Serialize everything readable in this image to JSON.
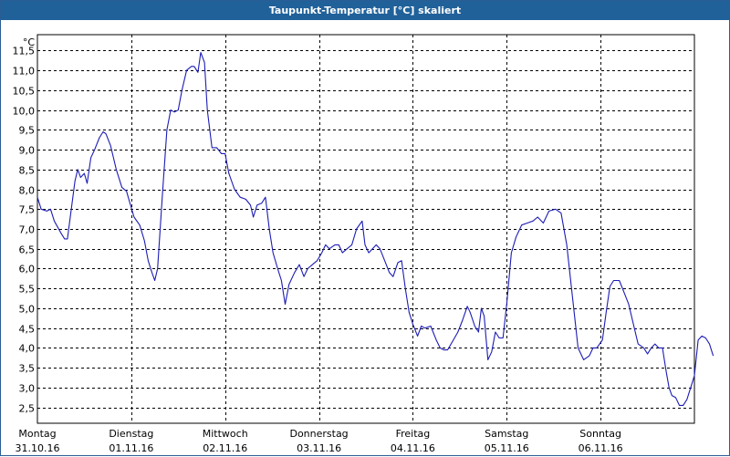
{
  "window": {
    "title": "Taupunkt-Temperatur [°C] skaliert"
  },
  "colors": {
    "title_bar": "#20619a",
    "series": "#1c1cb4",
    "grid": "#000000"
  },
  "chart_data": {
    "type": "line",
    "title": "Taupunkt-Temperatur [°C] skaliert",
    "ylabel": "°C",
    "xlabel": "",
    "ylim": [
      2.1,
      11.9
    ],
    "grid": true,
    "y_ticks": [
      "2,5",
      "3,0",
      "3,5",
      "4,0",
      "4,5",
      "5,0",
      "5,5",
      "6,0",
      "6,5",
      "7,0",
      "7,5",
      "8,0",
      "8,5",
      "9,0",
      "9,5",
      "10,0",
      "10,5",
      "11,0",
      "11,5"
    ],
    "y_tick_values": [
      2.5,
      3.0,
      3.5,
      4.0,
      4.5,
      5.0,
      5.5,
      6.0,
      6.5,
      7.0,
      7.5,
      8.0,
      8.5,
      9.0,
      9.5,
      10.0,
      10.5,
      11.0,
      11.5
    ],
    "days": [
      {
        "weekday": "Montag",
        "date": "31.10.16"
      },
      {
        "weekday": "Dienstag",
        "date": "01.11.16"
      },
      {
        "weekday": "Mittwoch",
        "date": "02.11.16"
      },
      {
        "weekday": "Donnerstag",
        "date": "03.11.16"
      },
      {
        "weekday": "Freitag",
        "date": "04.11.16"
      },
      {
        "weekday": "Samstag",
        "date": "05.11.16"
      },
      {
        "weekday": "Sonntag",
        "date": "06.11.16"
      }
    ],
    "xlim": [
      0,
      7
    ],
    "series": [
      {
        "points": [
          [
            0.0,
            7.8
          ],
          [
            0.04,
            7.5
          ],
          [
            0.1,
            7.45
          ],
          [
            0.14,
            7.5
          ],
          [
            0.18,
            7.2
          ],
          [
            0.25,
            6.9
          ],
          [
            0.29,
            6.75
          ],
          [
            0.32,
            6.75
          ],
          [
            0.35,
            7.3
          ],
          [
            0.4,
            8.2
          ],
          [
            0.43,
            8.5
          ],
          [
            0.46,
            8.3
          ],
          [
            0.5,
            8.4
          ],
          [
            0.53,
            8.15
          ],
          [
            0.57,
            8.8
          ],
          [
            0.61,
            9.0
          ],
          [
            0.66,
            9.3
          ],
          [
            0.7,
            9.45
          ],
          [
            0.73,
            9.4
          ],
          [
            0.78,
            9.1
          ],
          [
            0.84,
            8.5
          ],
          [
            0.9,
            8.05
          ],
          [
            0.95,
            7.95
          ],
          [
            0.98,
            7.7
          ],
          [
            1.03,
            7.3
          ],
          [
            1.09,
            7.1
          ],
          [
            1.14,
            6.7
          ],
          [
            1.18,
            6.2
          ],
          [
            1.22,
            5.9
          ],
          [
            1.25,
            5.7
          ],
          [
            1.28,
            6.0
          ],
          [
            1.33,
            7.8
          ],
          [
            1.38,
            9.5
          ],
          [
            1.42,
            10.0
          ],
          [
            1.46,
            9.95
          ],
          [
            1.5,
            10.0
          ],
          [
            1.54,
            10.5
          ],
          [
            1.59,
            11.0
          ],
          [
            1.64,
            11.1
          ],
          [
            1.67,
            11.1
          ],
          [
            1.71,
            10.95
          ],
          [
            1.74,
            11.45
          ],
          [
            1.78,
            11.2
          ],
          [
            1.81,
            10.0
          ],
          [
            1.86,
            9.05
          ],
          [
            1.91,
            9.05
          ],
          [
            1.96,
            8.9
          ],
          [
            2.0,
            8.9
          ],
          [
            2.04,
            8.4
          ],
          [
            2.1,
            8.0
          ],
          [
            2.16,
            7.8
          ],
          [
            2.22,
            7.75
          ],
          [
            2.27,
            7.6
          ],
          [
            2.3,
            7.3
          ],
          [
            2.34,
            7.6
          ],
          [
            2.39,
            7.65
          ],
          [
            2.43,
            7.8
          ],
          [
            2.47,
            7.0
          ],
          [
            2.51,
            6.4
          ],
          [
            2.56,
            6.0
          ],
          [
            2.6,
            5.7
          ],
          [
            2.64,
            5.1
          ],
          [
            2.68,
            5.6
          ],
          [
            2.74,
            5.9
          ],
          [
            2.79,
            6.1
          ],
          [
            2.84,
            5.8
          ],
          [
            2.88,
            6.0
          ],
          [
            2.93,
            6.1
          ],
          [
            2.98,
            6.2
          ],
          [
            3.03,
            6.4
          ],
          [
            3.07,
            6.6
          ],
          [
            3.11,
            6.5
          ],
          [
            3.17,
            6.6
          ],
          [
            3.21,
            6.6
          ],
          [
            3.25,
            6.4
          ],
          [
            3.3,
            6.5
          ],
          [
            3.35,
            6.6
          ],
          [
            3.4,
            7.0
          ],
          [
            3.46,
            7.2
          ],
          [
            3.49,
            6.6
          ],
          [
            3.53,
            6.4
          ],
          [
            3.57,
            6.5
          ],
          [
            3.61,
            6.6
          ],
          [
            3.65,
            6.5
          ],
          [
            3.7,
            6.2
          ],
          [
            3.75,
            5.9
          ],
          [
            3.79,
            5.8
          ],
          [
            3.84,
            6.15
          ],
          [
            3.88,
            6.2
          ],
          [
            3.92,
            5.5
          ],
          [
            3.96,
            4.9
          ],
          [
            4.0,
            4.6
          ],
          [
            4.05,
            4.3
          ],
          [
            4.09,
            4.55
          ],
          [
            4.13,
            4.5
          ],
          [
            4.19,
            4.55
          ],
          [
            4.25,
            4.2
          ],
          [
            4.29,
            4.0
          ],
          [
            4.33,
            3.95
          ],
          [
            4.37,
            3.95
          ],
          [
            4.42,
            4.15
          ],
          [
            4.48,
            4.4
          ],
          [
            4.53,
            4.7
          ],
          [
            4.58,
            5.05
          ],
          [
            4.61,
            4.9
          ],
          [
            4.66,
            4.55
          ],
          [
            4.7,
            4.4
          ],
          [
            4.73,
            5.0
          ],
          [
            4.76,
            4.8
          ],
          [
            4.8,
            3.7
          ],
          [
            4.84,
            3.9
          ],
          [
            4.88,
            4.4
          ],
          [
            4.92,
            4.25
          ],
          [
            4.96,
            4.25
          ],
          [
            5.0,
            5.1
          ],
          [
            5.05,
            6.4
          ],
          [
            5.1,
            6.8
          ],
          [
            5.16,
            7.1
          ],
          [
            5.22,
            7.15
          ],
          [
            5.28,
            7.2
          ],
          [
            5.33,
            7.3
          ],
          [
            5.39,
            7.15
          ],
          [
            5.45,
            7.45
          ],
          [
            5.52,
            7.5
          ],
          [
            5.58,
            7.4
          ],
          [
            5.64,
            6.6
          ],
          [
            5.7,
            5.3
          ],
          [
            5.76,
            4.0
          ],
          [
            5.82,
            3.7
          ],
          [
            5.88,
            3.8
          ],
          [
            5.92,
            4.0
          ],
          [
            5.96,
            4.0
          ],
          [
            6.02,
            4.2
          ],
          [
            6.06,
            4.9
          ],
          [
            6.1,
            5.55
          ],
          [
            6.14,
            5.7
          ],
          [
            6.2,
            5.7
          ],
          [
            6.25,
            5.4
          ],
          [
            6.3,
            5.1
          ],
          [
            6.35,
            4.6
          ],
          [
            6.4,
            4.1
          ],
          [
            6.46,
            4.0
          ],
          [
            6.5,
            3.85
          ],
          [
            6.54,
            4.0
          ],
          [
            6.58,
            4.1
          ],
          [
            6.62,
            4.0
          ],
          [
            6.66,
            4.0
          ],
          [
            6.7,
            3.4
          ],
          [
            6.73,
            3.0
          ],
          [
            6.76,
            2.8
          ],
          [
            6.8,
            2.75
          ],
          [
            6.84,
            2.55
          ],
          [
            6.88,
            2.55
          ],
          [
            6.92,
            2.7
          ],
          [
            6.96,
            3.0
          ],
          [
            7.0,
            3.3
          ],
          [
            7.04,
            4.2
          ],
          [
            7.08,
            4.3
          ],
          [
            7.12,
            4.25
          ],
          [
            7.16,
            4.1
          ],
          [
            7.2,
            3.8
          ]
        ]
      }
    ]
  }
}
